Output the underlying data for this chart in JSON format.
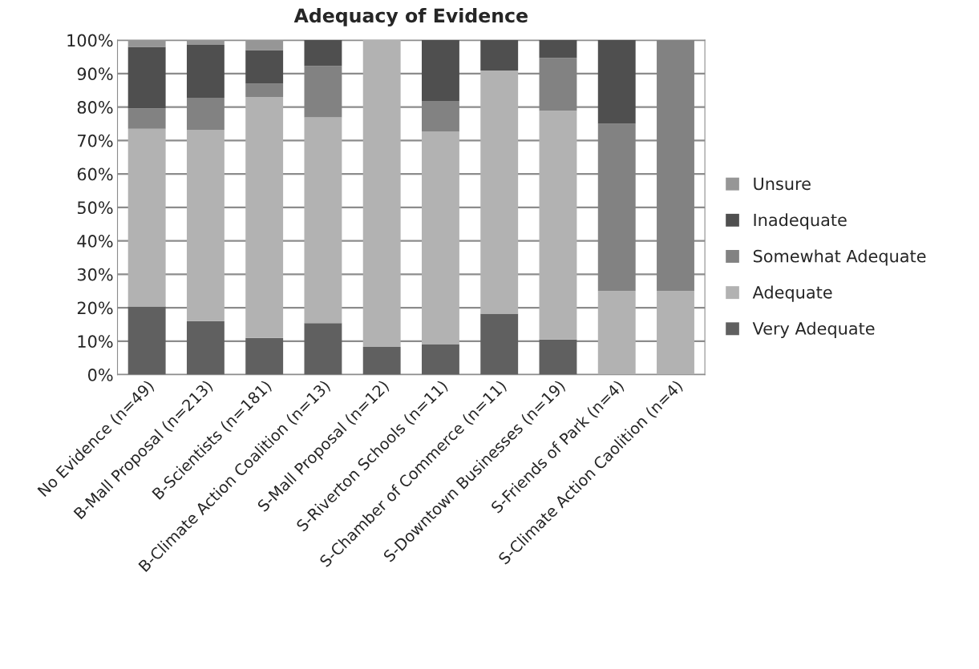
{
  "chart_data": {
    "type": "bar",
    "title": "Adequacy of Evidence",
    "stacked": true,
    "categories": [
      "No Evidence (n=49)",
      "B-Mall Proposal (n=213)",
      "B-Scientists (n=181)",
      "B-Climate Action Coalition (n=13)",
      "S-Mall Proposal (n=12)",
      "S-Riverton Schools (n=11)",
      "S-Chamber of Commerce (n=11)",
      "S-Downtown Businesses (n=19)",
      "S-Friends of Park (n=4)",
      "S-Climate Action Caolition (n=4)"
    ],
    "series": [
      {
        "name": "Very Adequate",
        "color": "#606060",
        "values": [
          20.4,
          16,
          11,
          15.4,
          8.3,
          9.1,
          18.2,
          10.5,
          0,
          0
        ]
      },
      {
        "name": "Adequate",
        "color": "#b2b2b2",
        "values": [
          53.1,
          57.2,
          72,
          61.5,
          91.7,
          63.6,
          72.7,
          68.4,
          25,
          25
        ]
      },
      {
        "name": "Somewhat Adequate",
        "color": "#828282",
        "values": [
          6.1,
          9.6,
          4,
          15.4,
          0,
          9.1,
          0,
          15.8,
          50,
          75
        ]
      },
      {
        "name": "Inadequate",
        "color": "#4f4f4f",
        "values": [
          18.4,
          15.8,
          10,
          7.7,
          0,
          18.2,
          9.1,
          5.3,
          25,
          0
        ]
      },
      {
        "name": "Unsure",
        "color": "#969696",
        "values": [
          2,
          1.4,
          3,
          0,
          0,
          0,
          0,
          0,
          0,
          0
        ]
      }
    ],
    "ylim": [
      0,
      100
    ],
    "yticks": [
      {
        "value": 0,
        "label": "0%"
      },
      {
        "value": 10,
        "label": "10%"
      },
      {
        "value": 20,
        "label": "20%"
      },
      {
        "value": 30,
        "label": "30%"
      },
      {
        "value": 40,
        "label": "40%"
      },
      {
        "value": 50,
        "label": "50%"
      },
      {
        "value": 60,
        "label": "60%"
      },
      {
        "value": 70,
        "label": "70%"
      },
      {
        "value": 80,
        "label": "80%"
      },
      {
        "value": 90,
        "label": "90%"
      },
      {
        "value": 100,
        "label": "100%"
      }
    ],
    "grid": "y",
    "legend": "right"
  }
}
